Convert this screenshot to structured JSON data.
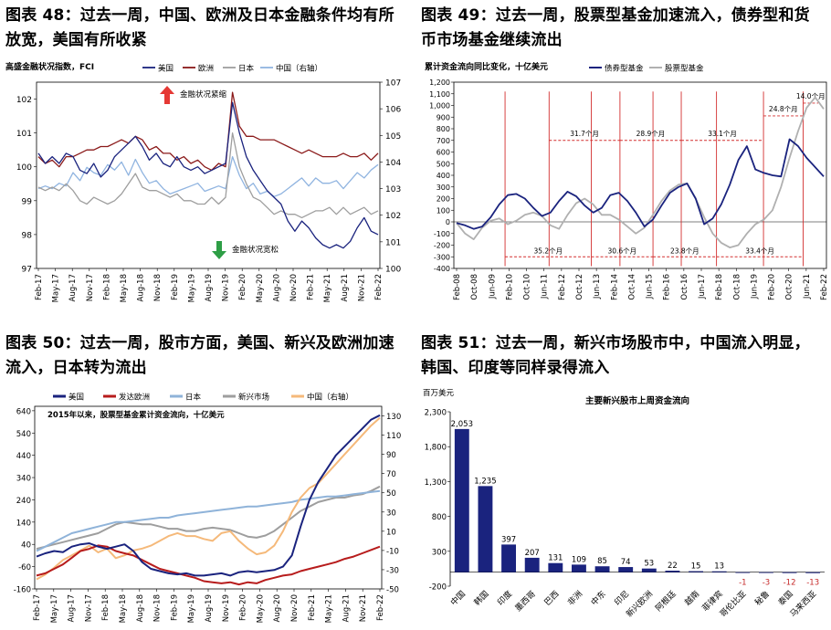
{
  "panels": [
    {
      "title": "图表 48：过去一周，中国、欧洲及日本金融条件均有所\n放宽，美国有所收紧",
      "chart_data": {
        "type": "line",
        "ylabel_left": "高盛金融状况指数，FCI",
        "y_left": {
          "min": 97,
          "max": 102.5,
          "ticks": [
            97,
            98,
            99,
            100,
            101,
            102
          ]
        },
        "y_right": {
          "min": 100,
          "max": 107,
          "ticks": [
            100,
            101,
            102,
            103,
            104,
            105,
            106,
            107
          ],
          "label": "右轴"
        },
        "x_ticks": [
          "Feb-17",
          "May-17",
          "Aug-17",
          "Nov-17",
          "Feb-18",
          "May-18",
          "Aug-18",
          "Nov-18",
          "Feb-19",
          "May-19",
          "Aug-19",
          "Nov-19",
          "Feb-20",
          "May-20",
          "Aug-20",
          "Nov-20",
          "Feb-21",
          "May-21",
          "Aug-21",
          "Nov-21",
          "Feb-22"
        ],
        "legend": [
          "美国",
          "欧洲",
          "日本",
          "中国（右轴）"
        ],
        "annotations": [
          "金融状况紧缩",
          "金融状况宽松"
        ],
        "series": [
          {
            "name": "美国",
            "color": "#1a237e",
            "axis": "left",
            "values": [
              100.4,
              100.1,
              100.3,
              100.1,
              100.4,
              100.3,
              99.9,
              99.8,
              100.1,
              99.7,
              99.9,
              100.3,
              100.5,
              100.7,
              100.9,
              100.6,
              100.2,
              100.4,
              100.1,
              100.0,
              100.3,
              100.0,
              99.9,
              100.0,
              99.8,
              99.9,
              100.0,
              100.1,
              101.9,
              101.0,
              100.3,
              99.9,
              99.6,
              99.3,
              99.1,
              98.9,
              98.4,
              98.1,
              98.4,
              98.2,
              97.9,
              97.7,
              97.6,
              97.7,
              97.6,
              97.8,
              98.2,
              98.5,
              98.1,
              98.0
            ]
          },
          {
            "name": "欧洲",
            "color": "#8b1a1a",
            "axis": "left",
            "values": [
              100.3,
              100.1,
              100.2,
              100.0,
              100.3,
              100.3,
              100.4,
              100.5,
              100.5,
              100.6,
              100.6,
              100.7,
              100.8,
              100.7,
              100.9,
              100.8,
              100.5,
              100.6,
              100.4,
              100.4,
              100.2,
              100.3,
              100.1,
              100.2,
              100.0,
              99.9,
              100.1,
              100.0,
              102.2,
              101.2,
              100.9,
              100.9,
              100.8,
              100.8,
              100.8,
              100.7,
              100.6,
              100.5,
              100.4,
              100.5,
              100.4,
              100.3,
              100.3,
              100.3,
              100.4,
              100.3,
              100.3,
              100.4,
              100.2,
              100.4
            ]
          },
          {
            "name": "日本",
            "color": "#9e9e9e",
            "axis": "left",
            "values": [
              99.4,
              99.3,
              99.4,
              99.3,
              99.5,
              99.3,
              99.0,
              98.9,
              99.1,
              99.0,
              98.9,
              99.0,
              99.2,
              99.5,
              99.8,
              99.4,
              99.3,
              99.3,
              99.2,
              99.1,
              99.2,
              99.0,
              99.0,
              98.9,
              98.9,
              99.1,
              98.9,
              99.1,
              101.0,
              100.0,
              99.5,
              99.1,
              99.0,
              98.8,
              98.6,
              98.7,
              98.6,
              98.6,
              98.5,
              98.6,
              98.7,
              98.7,
              98.8,
              98.6,
              98.8,
              98.6,
              98.7,
              98.8,
              98.6,
              98.7
            ]
          },
          {
            "name": "中国（右轴）",
            "color": "#90b4e0",
            "axis": "right",
            "values": [
              103.0,
              103.1,
              103.0,
              103.2,
              103.1,
              103.6,
              103.3,
              103.8,
              103.6,
              103.5,
              103.9,
              103.7,
              104.0,
              103.5,
              104.1,
              103.6,
              103.2,
              103.3,
              103.0,
              102.8,
              102.9,
              103.0,
              103.1,
              103.2,
              102.9,
              103.0,
              103.1,
              103.0,
              104.2,
              103.5,
              103.0,
              103.2,
              102.8,
              102.9,
              102.7,
              102.8,
              103.0,
              103.2,
              103.4,
              103.1,
              103.4,
              103.2,
              103.2,
              103.3,
              103.0,
              103.3,
              103.6,
              103.4,
              103.7,
              103.9
            ]
          }
        ]
      }
    },
    {
      "title": "图表 49：过去一周，股票型基金加速流入，债券型和货\n币市场基金继续流出",
      "chart_data": {
        "type": "line",
        "ylabel_left": "累计资金流向同比变化，十亿美元",
        "y_left": {
          "min": -400,
          "max": 1200,
          "ticks": [
            -400,
            -300,
            -200,
            -100,
            0,
            100,
            200,
            300,
            400,
            500,
            600,
            700,
            800,
            900,
            1000,
            1100,
            1200
          ]
        },
        "x_ticks": [
          "Feb-08",
          "Oct-08",
          "Jun-09",
          "Feb-10",
          "Oct-10",
          "Jun-11",
          "Feb-12",
          "Oct-12",
          "Jun-13",
          "Feb-14",
          "Oct-14",
          "Jun-15",
          "Feb-16",
          "Oct-16",
          "Jun-17",
          "Feb-18",
          "Oct-18",
          "Jun-19",
          "Feb-20",
          "Oct-20",
          "Jun-21",
          "Feb-22"
        ],
        "legend": [
          "债券型基金",
          "股票型基金"
        ],
        "annotations_top": [
          "31.7个月",
          "28.9个月",
          "33.1个月",
          "24.8个月",
          "14.0个月"
        ],
        "annotations_bottom": [
          "35.2个月",
          "30.6个月",
          "23.8个月",
          "33.4个月"
        ],
        "series": [
          {
            "name": "债券型基金",
            "color": "#1a237e",
            "values": [
              -10,
              -30,
              -60,
              -40,
              40,
              150,
              230,
              240,
              200,
              120,
              50,
              80,
              180,
              260,
              220,
              140,
              80,
              120,
              230,
              250,
              180,
              80,
              -40,
              20,
              140,
              250,
              300,
              330,
              200,
              -20,
              30,
              150,
              320,
              530,
              650,
              450,
              420,
              400,
              390,
              710,
              650,
              550,
              470,
              390
            ]
          },
          {
            "name": "股票型基金",
            "color": "#b0b0b0",
            "values": [
              -10,
              -100,
              -150,
              -50,
              10,
              30,
              -20,
              10,
              60,
              80,
              50,
              -30,
              -60,
              60,
              160,
              200,
              150,
              60,
              60,
              20,
              -40,
              -100,
              -50,
              60,
              180,
              270,
              320,
              330,
              200,
              40,
              -100,
              -180,
              -220,
              -200,
              -100,
              -20,
              20,
              100,
              300,
              550,
              780,
              980,
              1070,
              970
            ]
          }
        ]
      }
    },
    {
      "title": "图表 50：过去一周，股市方面，美国、新兴及欧洲加速\n流入，日本转为流出",
      "chart_data": {
        "type": "line",
        "ylabel_left": "2015年以来，股票型基金累计资金流向，十亿美元",
        "y_left": {
          "min": -160,
          "max": 660,
          "ticks": [
            -160,
            -60,
            40,
            140,
            240,
            340,
            440,
            540,
            640
          ]
        },
        "y_right": {
          "min": -50,
          "max": 140,
          "ticks": [
            -50,
            -30,
            -10,
            10,
            30,
            50,
            70,
            90,
            110,
            130
          ]
        },
        "x_ticks": [
          "Feb-17",
          "May-17",
          "Aug-17",
          "Nov-17",
          "Feb-18",
          "May-18",
          "Aug-18",
          "Nov-18",
          "Feb-19",
          "May-19",
          "Aug-19",
          "Nov-19",
          "Feb-20",
          "May-20",
          "Aug-20",
          "Nov-20",
          "Feb-21",
          "May-21",
          "Aug-21",
          "Nov-21",
          "Feb-22"
        ],
        "legend": [
          "美国",
          "发达欧洲",
          "日本",
          "新兴市场",
          "中国（右轴）"
        ],
        "series": [
          {
            "name": "美国",
            "color": "#1a237e",
            "axis": "left",
            "values": [
              -15,
              0,
              10,
              5,
              30,
              40,
              45,
              30,
              20,
              30,
              40,
              10,
              -40,
              -70,
              -80,
              -90,
              -95,
              -90,
              -100,
              -100,
              -95,
              -90,
              -100,
              -85,
              -80,
              -85,
              -80,
              -75,
              -60,
              -10,
              120,
              240,
              320,
              380,
              440,
              480,
              520,
              560,
              600,
              620
            ]
          },
          {
            "name": "发达欧洲",
            "color": "#b71c1c",
            "axis": "left",
            "values": [
              -100,
              -90,
              -70,
              -50,
              -20,
              10,
              20,
              35,
              30,
              10,
              0,
              -10,
              -30,
              -50,
              -70,
              -80,
              -90,
              -100,
              -110,
              -125,
              -130,
              -135,
              -130,
              -140,
              -130,
              -135,
              -120,
              -110,
              -100,
              -95,
              -80,
              -70,
              -60,
              -50,
              -40,
              -25,
              -15,
              0,
              15,
              30
            ]
          },
          {
            "name": "日本",
            "color": "#8fb3d9",
            "axis": "left",
            "values": [
              10,
              30,
              50,
              70,
              90,
              100,
              110,
              120,
              130,
              140,
              140,
              145,
              150,
              155,
              160,
              160,
              170,
              175,
              180,
              185,
              190,
              195,
              200,
              205,
              210,
              210,
              215,
              220,
              225,
              230,
              240,
              245,
              250,
              255,
              255,
              260,
              265,
              270,
              275,
              280
            ]
          },
          {
            "name": "新兴市场",
            "color": "#9e9e9e",
            "axis": "left",
            "values": [
              20,
              30,
              40,
              50,
              60,
              70,
              80,
              90,
              110,
              130,
              140,
              135,
              130,
              130,
              120,
              110,
              110,
              100,
              100,
              110,
              115,
              110,
              105,
              90,
              75,
              70,
              80,
              100,
              130,
              160,
              190,
              210,
              230,
              240,
              250,
              250,
              260,
              265,
              280,
              300
            ]
          },
          {
            "name": "中国（右轴）",
            "color": "#f5b97a",
            "axis": "right",
            "values": [
              -40,
              -35,
              -28,
              -20,
              -15,
              -10,
              -5,
              -12,
              -8,
              -18,
              -15,
              -10,
              -8,
              -5,
              0,
              5,
              8,
              5,
              5,
              2,
              0,
              8,
              10,
              0,
              -8,
              -14,
              -12,
              -5,
              10,
              30,
              45,
              55,
              60,
              70,
              80,
              90,
              100,
              110,
              120,
              128
            ]
          }
        ]
      }
    },
    {
      "title": "图表 51：过去一周，新兴市场股市中，中国流入明显，\n韩国、印度等同样录得流入",
      "chart_data": {
        "type": "bar",
        "title": "主要新兴股市上周资金流向",
        "ylabel": "百万美元",
        "ylim": [
          -200,
          2300
        ],
        "y_ticks": [
          -200,
          300,
          800,
          1300,
          1800,
          2300
        ],
        "categories": [
          "中国",
          "韩国",
          "印度",
          "墨西哥",
          "巴西",
          "非洲",
          "中东",
          "印尼",
          "新兴欧洲",
          "阿根廷",
          "越南",
          "菲律宾",
          "哥伦比亚",
          "秘鲁",
          "泰国",
          "马来西亚"
        ],
        "values": [
          2053,
          1235,
          397,
          207,
          131,
          109,
          85,
          74,
          53,
          22,
          15,
          13,
          -1,
          -3,
          -12,
          -13
        ],
        "value_labels": [
          "2,053",
          "1,235",
          "397",
          "207",
          "131",
          "109",
          "85",
          "74",
          "53",
          "22",
          "15",
          "13",
          "-1",
          "-3",
          "-12",
          "-13"
        ],
        "colors": {
          "positive": "#1a237e",
          "negative_label": "#c62828"
        }
      }
    }
  ]
}
